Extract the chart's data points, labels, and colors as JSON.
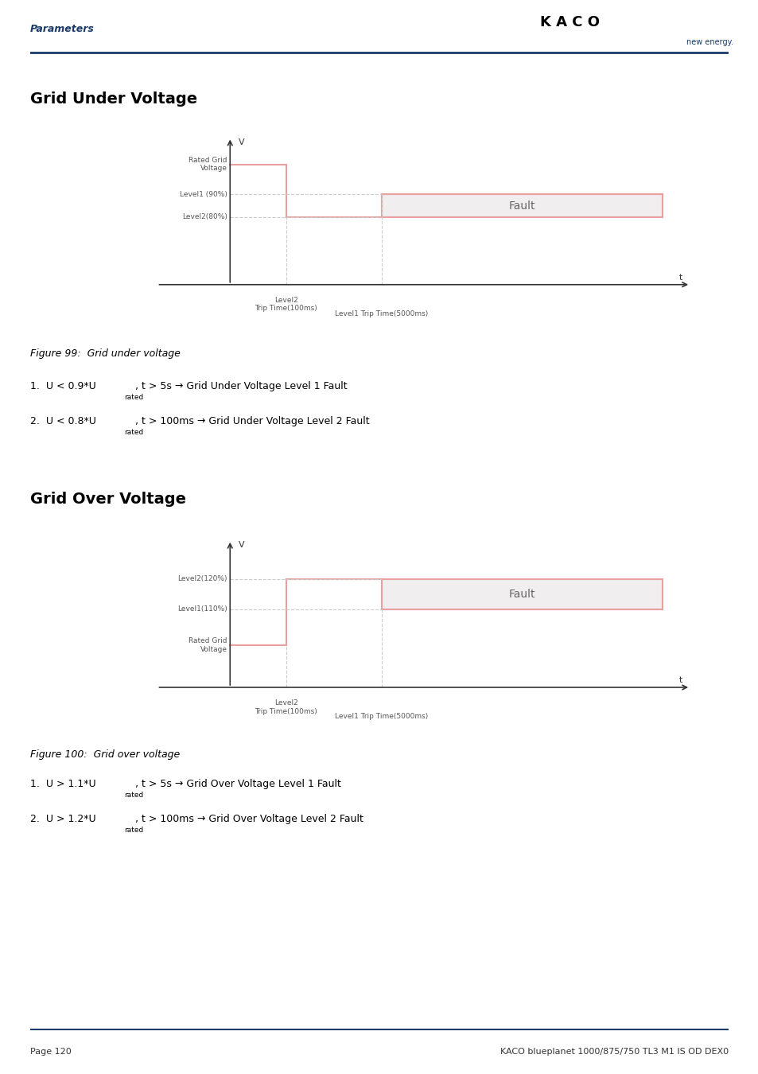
{
  "page_header_left": "Parameters",
  "page_header_color": "#1a3a6b",
  "kaco_text": "K A C O",
  "kaco_subtext": "new energy.",
  "header_line_color": "#1a3a6b",
  "section1_title": "Grid Under Voltage",
  "figure1_caption": "Figure 99:  Grid under voltage",
  "fig1_note1": "1.  U < 0.9*U",
  "fig1_note1_sub": "rated",
  "fig1_note1_rest": ", t > 5s → Grid Under Voltage Level 1 Fault",
  "fig1_note2": "2.  U < 0.8*U",
  "fig1_note2_sub": "rated",
  "fig1_note2_rest": ", t > 100ms → Grid Under Voltage Level 2 Fault",
  "section2_title": "Grid Over Voltage",
  "figure2_caption": "Figure 100:  Grid over voltage",
  "fig2_note1": "1.  U > 1.1*U",
  "fig2_note1_sub": "rated",
  "fig2_note1_rest": ", t > 5s → Grid Over Voltage Level 1 Fault",
  "fig2_note2": "2.  U > 1.2*U",
  "fig2_note2_sub": "rated",
  "fig2_note2_rest": ", t > 100ms → Grid Over Voltage Level 2 Fault",
  "footer_left": "Page 120",
  "footer_right": "KACO blueplanet 1000/875/750 TL3 M1 IS OD DEX0",
  "footer_line_color": "#1a3a6b",
  "line_color": "#e8a0a0",
  "fault_fill_color": "#f0eeee",
  "fault_text_color": "#666666",
  "axis_color": "#333333",
  "label_color": "#555555",
  "dashed_color": "#cccccc"
}
